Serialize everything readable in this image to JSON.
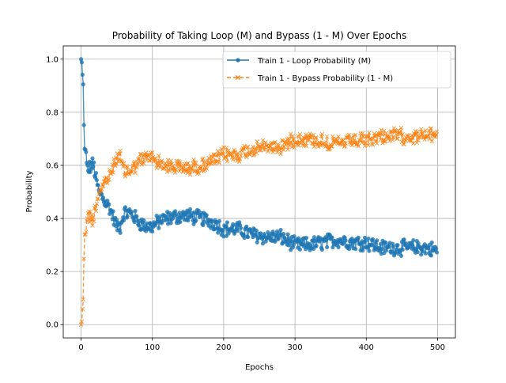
{
  "chart_data": {
    "type": "line",
    "title": "Probability of Taking Loop (M) and Bypass (1 - M) Over Epochs",
    "xlabel": "Epochs",
    "ylabel": "Probability",
    "xlim": [
      -25,
      525
    ],
    "ylim": [
      -0.05,
      1.05
    ],
    "xticks": [
      0,
      100,
      200,
      300,
      400,
      500
    ],
    "yticks": [
      0.0,
      0.2,
      0.4,
      0.6,
      0.8,
      1.0
    ],
    "grid": true,
    "legend_position": "top-right",
    "series": [
      {
        "name": "Train 1 - Loop Probability (M)",
        "color": "#1f77b4",
        "style": "solid",
        "marker": "circle",
        "knots": [
          [
            0,
            1.0
          ],
          [
            1,
            0.99
          ],
          [
            2,
            0.94
          ],
          [
            3,
            0.9
          ],
          [
            4,
            0.75
          ],
          [
            5,
            0.66
          ],
          [
            6,
            0.67
          ],
          [
            8,
            0.6
          ],
          [
            10,
            0.58
          ],
          [
            14,
            0.6
          ],
          [
            18,
            0.6
          ],
          [
            20,
            0.56
          ],
          [
            25,
            0.5
          ],
          [
            30,
            0.48
          ],
          [
            40,
            0.44
          ],
          [
            50,
            0.37
          ],
          [
            55,
            0.37
          ],
          [
            60,
            0.42
          ],
          [
            70,
            0.42
          ],
          [
            80,
            0.39
          ],
          [
            90,
            0.37
          ],
          [
            100,
            0.37
          ],
          [
            110,
            0.39
          ],
          [
            120,
            0.4
          ],
          [
            140,
            0.41
          ],
          [
            150,
            0.41
          ],
          [
            170,
            0.4
          ],
          [
            190,
            0.38
          ],
          [
            200,
            0.36
          ],
          [
            220,
            0.36
          ],
          [
            240,
            0.34
          ],
          [
            260,
            0.33
          ],
          [
            280,
            0.33
          ],
          [
            300,
            0.3
          ],
          [
            320,
            0.3
          ],
          [
            340,
            0.31
          ],
          [
            360,
            0.32
          ],
          [
            380,
            0.31
          ],
          [
            400,
            0.31
          ],
          [
            420,
            0.29
          ],
          [
            440,
            0.29
          ],
          [
            460,
            0.29
          ],
          [
            480,
            0.29
          ],
          [
            499,
            0.28
          ]
        ]
      },
      {
        "name": "Train 1 - Bypass Probability (1 - M)",
        "color": "#ff7f0e",
        "style": "dashed",
        "marker": "x",
        "knots": [
          [
            0,
            0.0
          ],
          [
            1,
            0.01
          ],
          [
            2,
            0.06
          ],
          [
            3,
            0.1
          ],
          [
            4,
            0.25
          ],
          [
            5,
            0.34
          ],
          [
            6,
            0.33
          ],
          [
            8,
            0.4
          ],
          [
            10,
            0.42
          ],
          [
            14,
            0.4
          ],
          [
            18,
            0.4
          ],
          [
            20,
            0.44
          ],
          [
            25,
            0.5
          ],
          [
            30,
            0.52
          ],
          [
            40,
            0.56
          ],
          [
            50,
            0.63
          ],
          [
            55,
            0.63
          ],
          [
            60,
            0.58
          ],
          [
            70,
            0.58
          ],
          [
            80,
            0.61
          ],
          [
            90,
            0.63
          ],
          [
            100,
            0.63
          ],
          [
            110,
            0.61
          ],
          [
            120,
            0.6
          ],
          [
            140,
            0.59
          ],
          [
            150,
            0.59
          ],
          [
            170,
            0.6
          ],
          [
            190,
            0.62
          ],
          [
            200,
            0.64
          ],
          [
            220,
            0.64
          ],
          [
            240,
            0.66
          ],
          [
            260,
            0.67
          ],
          [
            280,
            0.67
          ],
          [
            300,
            0.7
          ],
          [
            320,
            0.7
          ],
          [
            340,
            0.69
          ],
          [
            360,
            0.68
          ],
          [
            380,
            0.69
          ],
          [
            400,
            0.69
          ],
          [
            420,
            0.71
          ],
          [
            440,
            0.71
          ],
          [
            460,
            0.71
          ],
          [
            480,
            0.71
          ],
          [
            499,
            0.72
          ]
        ]
      }
    ]
  }
}
